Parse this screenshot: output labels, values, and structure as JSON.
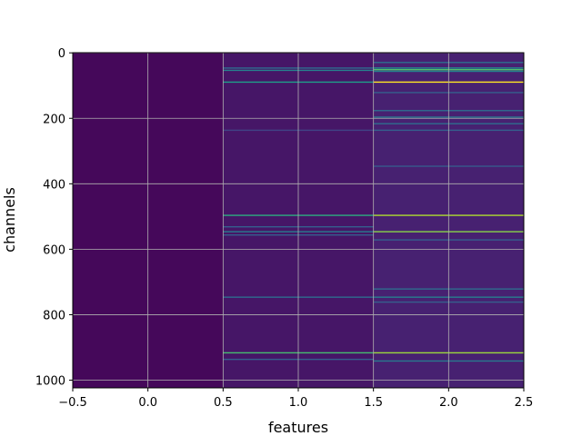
{
  "chart_data": {
    "type": "heatmap",
    "title": "",
    "xlabel": "features",
    "ylabel": "channels",
    "xlim": [
      -0.5,
      2.5
    ],
    "ylim": [
      1023.5,
      -0.5
    ],
    "x_ticks": [
      -0.5,
      0.0,
      0.5,
      1.0,
      1.5,
      2.0,
      2.5
    ],
    "x_tick_labels": [
      "−0.5",
      "0.0",
      "0.5",
      "1.0",
      "1.5",
      "2.0",
      "2.5"
    ],
    "y_ticks": [
      0,
      200,
      400,
      600,
      800,
      1000
    ],
    "y_tick_labels": [
      "0",
      "200",
      "400",
      "600",
      "800",
      "1000"
    ],
    "grid": true,
    "colormap": "viridis",
    "n_channels": 1024,
    "features": [
      0,
      1,
      2
    ],
    "value_range": [
      0,
      1
    ],
    "background_levels": [
      0.02,
      0.06,
      0.09
    ],
    "bright_channels": [
      {
        "feature": 1,
        "channel": 45,
        "value": 0.35
      },
      {
        "feature": 1,
        "channel": 52,
        "value": 0.45
      },
      {
        "feature": 1,
        "channel": 88,
        "value": 0.55
      },
      {
        "feature": 1,
        "channel": 235,
        "value": 0.2
      },
      {
        "feature": 1,
        "channel": 495,
        "value": 0.62
      },
      {
        "feature": 1,
        "channel": 530,
        "value": 0.3
      },
      {
        "feature": 1,
        "channel": 545,
        "value": 0.42
      },
      {
        "feature": 1,
        "channel": 555,
        "value": 0.3
      },
      {
        "feature": 1,
        "channel": 745,
        "value": 0.35
      },
      {
        "feature": 1,
        "channel": 915,
        "value": 0.7
      },
      {
        "feature": 1,
        "channel": 935,
        "value": 0.3
      },
      {
        "feature": 2,
        "channel": 28,
        "value": 0.35
      },
      {
        "feature": 2,
        "channel": 45,
        "value": 0.5
      },
      {
        "feature": 2,
        "channel": 50,
        "value": 0.72
      },
      {
        "feature": 2,
        "channel": 55,
        "value": 0.45
      },
      {
        "feature": 2,
        "channel": 88,
        "value": 1.0
      },
      {
        "feature": 2,
        "channel": 120,
        "value": 0.3
      },
      {
        "feature": 2,
        "channel": 175,
        "value": 0.35
      },
      {
        "feature": 2,
        "channel": 195,
        "value": 0.4
      },
      {
        "feature": 2,
        "channel": 215,
        "value": 0.35
      },
      {
        "feature": 2,
        "channel": 235,
        "value": 0.3
      },
      {
        "feature": 2,
        "channel": 345,
        "value": 0.28
      },
      {
        "feature": 2,
        "channel": 495,
        "value": 0.88
      },
      {
        "feature": 2,
        "channel": 545,
        "value": 0.82
      },
      {
        "feature": 2,
        "channel": 570,
        "value": 0.3
      },
      {
        "feature": 2,
        "channel": 720,
        "value": 0.35
      },
      {
        "feature": 2,
        "channel": 745,
        "value": 0.42
      },
      {
        "feature": 2,
        "channel": 760,
        "value": 0.3
      },
      {
        "feature": 2,
        "channel": 915,
        "value": 0.85
      },
      {
        "feature": 2,
        "channel": 940,
        "value": 0.4
      }
    ]
  }
}
